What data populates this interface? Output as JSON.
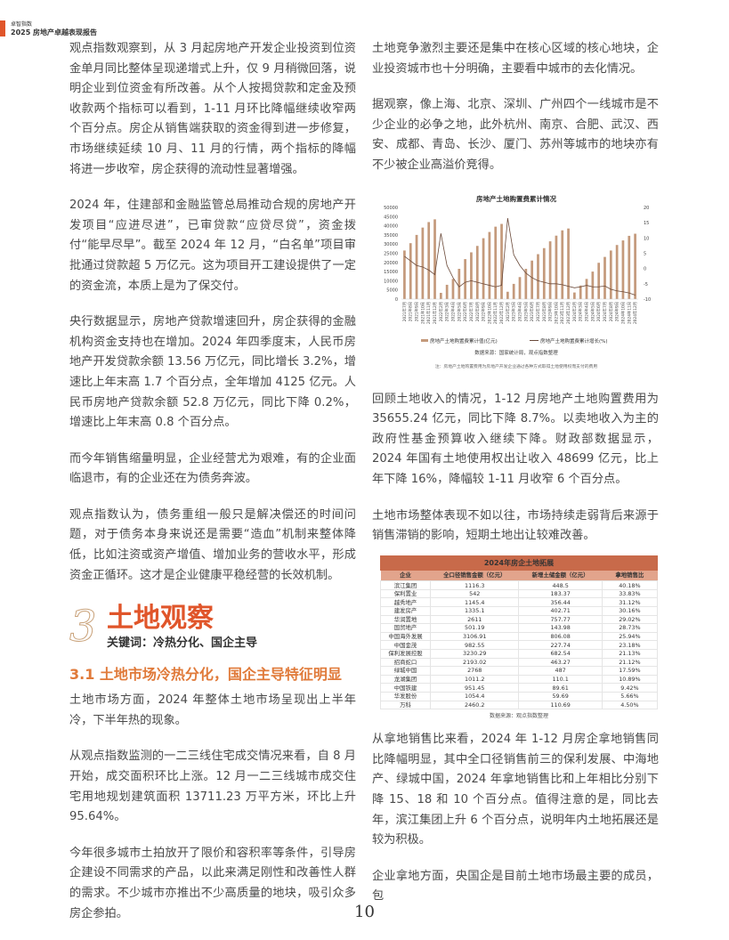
{
  "header": {
    "small": "卓智指数",
    "title": "2025 房地产卓越表现报告"
  },
  "left": {
    "p1": "观点指数观察到，从 3 月起房地产开发企业投资到位资金单月同比整体呈现递增式上升，仅 9 月稍微回落，说明企业到位资金有所改善。从个人按揭贷款和定金及预收款两个指标可以看到，1-11 月环比降幅继续收窄两个百分点。房企从销售端获取的资金得到进一步修复，市场继续延续 10 月、11 月的行情，两个指标的降幅将进一步收窄，房企获得的流动性显著增强。",
    "p2": "2024 年，住建部和金融监管总局推动合规的房地产开发项目“应进尽进”，已审贷款“应贷尽贷”，资金拨付“能早尽早”。截至 2024 年 12 月，“白名单”项目审批通过贷款超 5 万亿元。这为项目开工建设提供了一定的资金流，本质上是为了保交付。",
    "p3": "央行数据显示，房地产贷款增速回升，房企获得的金融机构资金支持也在增加。2024 年四季度末，人民币房地产开发贷款余额 13.56 万亿元，同比增长 3.2%，增速比上年末高 1.7 个百分点，全年增加 4125 亿元。人民币房地产贷款余额 52.8 万亿元，同比下降 0.2%，增速比上年末高 0.8 个百分点。",
    "p4": "而今年销售缩量明显，企业经营尤为艰难，有的企业面临退市，有的企业还在为债务奔波。",
    "p5": "观点指数认为，债务重组一般只是解决偿还的时间问题，对于债务本身来说还是需要“造血”机制来整体降低，比如注资或资产增值、增加业务的营收水平，形成资金正循环。这才是企业健康平稳经营的长效机制。",
    "section_number": "3",
    "section_title": "土地观察",
    "keywords": "关键词：冷热分化、国企主导",
    "subheading": "3.1 土地市场冷热分化，国企主导特征明显",
    "p6": "土地市场方面，2024 年整体土地市场呈现出上半年冷，下半年热的现象。",
    "p7": "从观点指数监测的一二三线住宅成交情况来看，自 8 月开始，成交面积环比上涨。12 月一二三线城市成交住宅用地规划建筑面积 13711.23 万平方米，环比上升 95.64%。",
    "p8": "今年很多城市土拍放开了限价和容积率等条件，引导房企建设不同需求的产品，以此来满足刚性和改善性人群的需求。不少城市亦推出不少高质量的地块，吸引众多房企参拍。"
  },
  "right": {
    "p1": "土地竞争激烈主要还是集中在核心区域的核心地块，企业投资城市也十分明确，主要看中城市的去化情况。",
    "p2": "据观察，像上海、北京、深圳、广州四个一线城市是不少企业的必争之地，此外杭州、南京、合肥、武汉、西安、成都、青岛、长沙、厦门、苏州等城市的地块亦有不少被企业高溢价竞得。",
    "p3": "回顾土地收入的情况，1-12 月房地产土地购置费用为 35655.24 亿元，同比下降 8.7%。以卖地收入为主的政府性基金预算收入继续下降。财政部数据显示，2024 年国有土地使用权出让收入 48699 亿元，比上年下降 16%，降幅较 1-11 月收窄 6 个百分点。",
    "p4": "土地市场整体表现不如以往，市场持续走弱背后来源于销售滞销的影响，短期土地出让较难改善。",
    "p5": "从拿地销售比来看，2024 年 1-12 月房企拿地销售同比降幅明显，其中全口径销售前三的保利发展、中海地产、绿城中国，2024 年拿地销售比和上年相比分别下降 15、18 和 10 个百分点。值得注意的是，同比去年，滨江集团上升 6 个百分点，说明年内土地拓展还是较为积极。",
    "p6": "企业拿地方面，央国企是目前土地市场最主要的成员，包"
  },
  "chart_data": {
    "type": "bar+line",
    "title": "房地产土地购置费累计情况",
    "categories": [
      "2021年7月",
      "2021年8月",
      "2021年9月",
      "2021年10月",
      "2021年11月",
      "2021年12月",
      "2022年2月",
      "2022年3月",
      "2022年4月",
      "2022年5月",
      "2022年6月",
      "2022年7月",
      "2022年8月",
      "2022年9月",
      "2022年10月",
      "2022年11月",
      "2022年12月",
      "2023年2月",
      "2023年3月",
      "2023年4月",
      "2023年5月",
      "2023年6月",
      "2023年7月",
      "2023年8月",
      "2023年9月",
      "2023年10月",
      "2023年11月",
      "2023年12月",
      "2024年2月",
      "2024年3月",
      "2024年4月",
      "2024年5月",
      "2024年6月",
      "2024年7月",
      "2024年8月",
      "2024年9月",
      "2024年10月",
      "2024年11月",
      "2024年12月"
    ],
    "series": [
      {
        "name": "房地产土地购置费累计值(亿元)",
        "type": "bar",
        "axis": "left",
        "color": "#c49a7c",
        "values": [
          26500,
          30500,
          35000,
          39000,
          42000,
          43500,
          3400,
          7800,
          11000,
          16500,
          21800,
          25500,
          29000,
          33200,
          36600,
          39500,
          41000,
          4000,
          8300,
          12000,
          16500,
          21000,
          24500,
          27800,
          31500,
          34600,
          37500,
          38500,
          3600,
          7400,
          11000,
          15000,
          19800,
          23000,
          26500,
          29500,
          32000,
          34500,
          35655
        ]
      },
      {
        "name": "房地产土地购置费累计增长(%)",
        "type": "line",
        "axis": "right",
        "color": "#6b4a3a",
        "values": [
          4,
          2.5,
          1,
          0.5,
          -0.5,
          -2,
          11.5,
          1,
          -3,
          -6,
          -4.5,
          -4,
          -4.5,
          -5,
          -5.5,
          -6,
          -5.5,
          16.5,
          4.5,
          1,
          -1.5,
          -3,
          -4,
          -4.5,
          -5,
          -5,
          -5.3,
          -5.8,
          -6.3,
          -6,
          -5.5,
          -6,
          -6,
          -5.7,
          -6.8,
          -7.3,
          -7.6,
          -8,
          -8.7
        ]
      }
    ],
    "ylim_left": [
      0,
      50000
    ],
    "yticks_left": [
      0,
      5000,
      10000,
      15000,
      20000,
      25000,
      30000,
      35000,
      40000,
      45000,
      50000
    ],
    "ylim_right": [
      -10,
      20
    ],
    "yticks_right": [
      -10,
      -5,
      0,
      5,
      10,
      15,
      20
    ],
    "legend": "bottom",
    "grid": false,
    "source": "数据来源：国家统计局，观点指数整理",
    "note": "注：房地产土地购置费用为房地产开发企业通过各种方式取得土地使用权而支付的费用"
  },
  "table": {
    "title": "2024年房企土地拓展",
    "headers": [
      "企业",
      "全口径销售金额（亿元）",
      "新增土储金额（亿元）",
      "拿地销售比"
    ],
    "rows": [
      [
        "滨江集团",
        "1116.3",
        "448.5",
        "40.18%"
      ],
      [
        "保利置业",
        "542",
        "183.37",
        "33.83%"
      ],
      [
        "越秀地产",
        "1145.4",
        "356.44",
        "31.12%"
      ],
      [
        "建发房产",
        "1335.1",
        "402.71",
        "30.16%"
      ],
      [
        "华润置地",
        "2611",
        "757.77",
        "29.02%"
      ],
      [
        "国贸地产",
        "501.19",
        "143.98",
        "28.73%"
      ],
      [
        "中国海外发展",
        "3106.91",
        "806.08",
        "25.94%"
      ],
      [
        "中国金茂",
        "982.55",
        "227.74",
        "23.18%"
      ],
      [
        "保利发展控股",
        "3230.29",
        "682.54",
        "21.13%"
      ],
      [
        "招商蛇口",
        "2193.02",
        "463.27",
        "21.12%"
      ],
      [
        "绿城中国",
        "2768",
        "487",
        "17.59%"
      ],
      [
        "龙湖集团",
        "1011.2",
        "110.1",
        "10.89%"
      ],
      [
        "中国铁建",
        "951.45",
        "89.61",
        "9.42%"
      ],
      [
        "华发股份",
        "1054.4",
        "59.69",
        "5.66%"
      ],
      [
        "万科",
        "2460.2",
        "110.69",
        "4.50%"
      ]
    ],
    "source": "数据来源：观点指数整理"
  },
  "page_number": "10"
}
